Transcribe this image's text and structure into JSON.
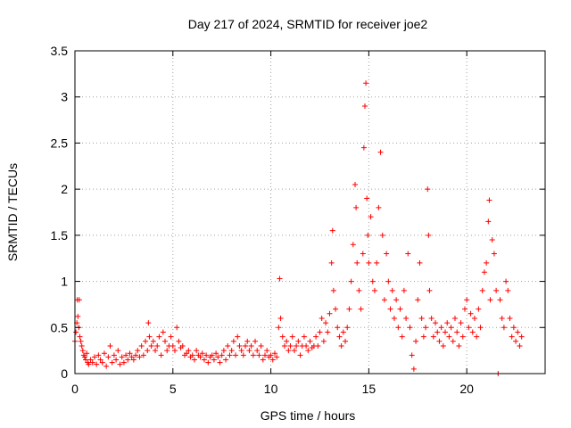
{
  "chart_data": {
    "type": "scatter",
    "title": "Day 217 of 2024, SRMTID for receiver joe2",
    "xlabel": "GPS time / hours",
    "ylabel": "SRMTID / TECUs",
    "xlim": [
      0,
      24
    ],
    "ylim": [
      0,
      3.5
    ],
    "xticks": [
      0,
      5,
      10,
      15,
      20
    ],
    "xtick_labels": [
      "0",
      "5",
      "10",
      "15",
      "20"
    ],
    "yticks": [
      0,
      0.5,
      1,
      1.5,
      2,
      2.5,
      3,
      3.5
    ],
    "ytick_labels": [
      "0",
      "0.5",
      "1",
      "1.5",
      "2",
      "2.5",
      "3",
      "3.5"
    ],
    "grid": true,
    "marker": "+",
    "color": "#ff0000",
    "series": [
      {
        "name": "SRMTID",
        "points": [
          [
            0.0,
            0.35
          ],
          [
            0.05,
            0.45
          ],
          [
            0.1,
            0.55
          ],
          [
            0.12,
            0.8
          ],
          [
            0.15,
            0.62
          ],
          [
            0.2,
            0.5
          ],
          [
            0.22,
            0.8
          ],
          [
            0.25,
            0.4
          ],
          [
            0.3,
            0.35
          ],
          [
            0.35,
            0.3
          ],
          [
            0.4,
            0.25
          ],
          [
            0.45,
            0.2
          ],
          [
            0.5,
            0.18
          ],
          [
            0.55,
            0.15
          ],
          [
            0.6,
            0.22
          ],
          [
            0.65,
            0.12
          ],
          [
            0.7,
            0.1
          ],
          [
            0.8,
            0.15
          ],
          [
            0.9,
            0.12
          ],
          [
            1.0,
            0.18
          ],
          [
            1.1,
            0.1
          ],
          [
            1.2,
            0.2
          ],
          [
            1.3,
            0.15
          ],
          [
            1.4,
            0.12
          ],
          [
            1.5,
            0.22
          ],
          [
            1.6,
            0.08
          ],
          [
            1.7,
            0.18
          ],
          [
            1.8,
            0.3
          ],
          [
            1.9,
            0.12
          ],
          [
            2.0,
            0.2
          ],
          [
            2.1,
            0.15
          ],
          [
            2.2,
            0.25
          ],
          [
            2.3,
            0.1
          ],
          [
            2.4,
            0.18
          ],
          [
            2.5,
            0.12
          ],
          [
            2.6,
            0.2
          ],
          [
            2.7,
            0.15
          ],
          [
            2.8,
            0.22
          ],
          [
            2.9,
            0.18
          ],
          [
            3.0,
            0.15
          ],
          [
            3.1,
            0.2
          ],
          [
            3.2,
            0.25
          ],
          [
            3.3,
            0.18
          ],
          [
            3.4,
            0.3
          ],
          [
            3.5,
            0.2
          ],
          [
            3.6,
            0.35
          ],
          [
            3.7,
            0.25
          ],
          [
            3.75,
            0.55
          ],
          [
            3.8,
            0.4
          ],
          [
            3.9,
            0.3
          ],
          [
            4.0,
            0.35
          ],
          [
            4.1,
            0.25
          ],
          [
            4.2,
            0.3
          ],
          [
            4.3,
            0.4
          ],
          [
            4.4,
            0.2
          ],
          [
            4.5,
            0.45
          ],
          [
            4.6,
            0.35
          ],
          [
            4.7,
            0.25
          ],
          [
            4.8,
            0.3
          ],
          [
            4.9,
            0.4
          ],
          [
            5.0,
            0.3
          ],
          [
            5.1,
            0.25
          ],
          [
            5.2,
            0.5
          ],
          [
            5.3,
            0.35
          ],
          [
            5.4,
            0.28
          ],
          [
            5.5,
            0.3
          ],
          [
            5.6,
            0.2
          ],
          [
            5.7,
            0.22
          ],
          [
            5.8,
            0.25
          ],
          [
            5.9,
            0.18
          ],
          [
            6.0,
            0.2
          ],
          [
            6.1,
            0.15
          ],
          [
            6.2,
            0.25
          ],
          [
            6.3,
            0.2
          ],
          [
            6.4,
            0.18
          ],
          [
            6.5,
            0.22
          ],
          [
            6.6,
            0.15
          ],
          [
            6.7,
            0.2
          ],
          [
            6.8,
            0.12
          ],
          [
            6.9,
            0.18
          ],
          [
            7.0,
            0.2
          ],
          [
            7.1,
            0.15
          ],
          [
            7.2,
            0.22
          ],
          [
            7.3,
            0.18
          ],
          [
            7.4,
            0.12
          ],
          [
            7.5,
            0.2
          ],
          [
            7.6,
            0.25
          ],
          [
            7.7,
            0.15
          ],
          [
            7.8,
            0.3
          ],
          [
            7.9,
            0.2
          ],
          [
            8.0,
            0.25
          ],
          [
            8.1,
            0.35
          ],
          [
            8.2,
            0.2
          ],
          [
            8.3,
            0.4
          ],
          [
            8.4,
            0.3
          ],
          [
            8.5,
            0.25
          ],
          [
            8.6,
            0.2
          ],
          [
            8.7,
            0.3
          ],
          [
            8.8,
            0.35
          ],
          [
            8.9,
            0.25
          ],
          [
            9.0,
            0.3
          ],
          [
            9.1,
            0.2
          ],
          [
            9.2,
            0.35
          ],
          [
            9.3,
            0.25
          ],
          [
            9.4,
            0.2
          ],
          [
            9.5,
            0.3
          ],
          [
            9.6,
            0.15
          ],
          [
            9.7,
            0.2
          ],
          [
            9.8,
            0.25
          ],
          [
            9.9,
            0.18
          ],
          [
            10.0,
            0.2
          ],
          [
            10.1,
            0.15
          ],
          [
            10.2,
            0.22
          ],
          [
            10.3,
            0.18
          ],
          [
            10.4,
            0.5
          ],
          [
            10.45,
            1.03
          ],
          [
            10.5,
            0.6
          ],
          [
            10.6,
            0.4
          ],
          [
            10.7,
            0.3
          ],
          [
            10.8,
            0.35
          ],
          [
            10.9,
            0.25
          ],
          [
            11.0,
            0.3
          ],
          [
            11.1,
            0.4
          ],
          [
            11.2,
            0.25
          ],
          [
            11.3,
            0.3
          ],
          [
            11.4,
            0.35
          ],
          [
            11.5,
            0.2
          ],
          [
            11.6,
            0.3
          ],
          [
            11.7,
            0.4
          ],
          [
            11.8,
            0.3
          ],
          [
            11.9,
            0.25
          ],
          [
            12.0,
            0.35
          ],
          [
            12.1,
            0.28
          ],
          [
            12.2,
            0.3
          ],
          [
            12.3,
            0.4
          ],
          [
            12.4,
            0.3
          ],
          [
            12.5,
            0.45
          ],
          [
            12.6,
            0.6
          ],
          [
            12.7,
            0.35
          ],
          [
            12.8,
            0.55
          ],
          [
            12.9,
            0.45
          ],
          [
            13.0,
            0.65
          ],
          [
            13.1,
            1.2
          ],
          [
            13.15,
            1.55
          ],
          [
            13.2,
            0.9
          ],
          [
            13.3,
            0.7
          ],
          [
            13.4,
            0.5
          ],
          [
            13.5,
            0.4
          ],
          [
            13.6,
            0.3
          ],
          [
            13.7,
            0.45
          ],
          [
            13.8,
            0.35
          ],
          [
            13.9,
            0.5
          ],
          [
            14.0,
            0.7
          ],
          [
            14.1,
            1.0
          ],
          [
            14.2,
            1.4
          ],
          [
            14.3,
            2.05
          ],
          [
            14.35,
            1.8
          ],
          [
            14.4,
            1.2
          ],
          [
            14.5,
            0.9
          ],
          [
            14.6,
            0.7
          ],
          [
            14.7,
            1.3
          ],
          [
            14.75,
            2.45
          ],
          [
            14.8,
            2.9
          ],
          [
            14.85,
            3.15
          ],
          [
            14.9,
            1.9
          ],
          [
            14.95,
            1.5
          ],
          [
            15.0,
            1.2
          ],
          [
            15.1,
            1.7
          ],
          [
            15.2,
            1.0
          ],
          [
            15.3,
            0.9
          ],
          [
            15.4,
            1.2
          ],
          [
            15.5,
            1.8
          ],
          [
            15.6,
            2.4
          ],
          [
            15.7,
            1.5
          ],
          [
            15.8,
            0.8
          ],
          [
            15.9,
            1.3
          ],
          [
            16.0,
            1.0
          ],
          [
            16.1,
            0.7
          ],
          [
            16.2,
            0.9
          ],
          [
            16.3,
            0.6
          ],
          [
            16.4,
            0.8
          ],
          [
            16.5,
            0.5
          ],
          [
            16.6,
            0.7
          ],
          [
            16.7,
            0.4
          ],
          [
            16.8,
            0.9
          ],
          [
            16.9,
            0.6
          ],
          [
            17.0,
            1.3
          ],
          [
            17.1,
            0.5
          ],
          [
            17.2,
            0.2
          ],
          [
            17.3,
            0.05
          ],
          [
            17.4,
            0.35
          ],
          [
            17.5,
            0.8
          ],
          [
            17.6,
            1.2
          ],
          [
            17.7,
            0.6
          ],
          [
            17.8,
            0.4
          ],
          [
            17.9,
            0.5
          ],
          [
            18.0,
            2.0
          ],
          [
            18.05,
            1.5
          ],
          [
            18.1,
            0.9
          ],
          [
            18.2,
            0.6
          ],
          [
            18.3,
            0.4
          ],
          [
            18.4,
            0.55
          ],
          [
            18.5,
            0.45
          ],
          [
            18.6,
            0.35
          ],
          [
            18.7,
            0.5
          ],
          [
            18.8,
            0.3
          ],
          [
            18.9,
            0.45
          ],
          [
            19.0,
            0.55
          ],
          [
            19.1,
            0.4
          ],
          [
            19.2,
            0.5
          ],
          [
            19.3,
            0.35
          ],
          [
            19.4,
            0.6
          ],
          [
            19.5,
            0.45
          ],
          [
            19.6,
            0.3
          ],
          [
            19.7,
            0.55
          ],
          [
            19.8,
            0.4
          ],
          [
            19.9,
            0.7
          ],
          [
            20.0,
            0.8
          ],
          [
            20.1,
            0.5
          ],
          [
            20.2,
            0.65
          ],
          [
            20.3,
            0.45
          ],
          [
            20.4,
            0.6
          ],
          [
            20.5,
            0.4
          ],
          [
            20.6,
            0.7
          ],
          [
            20.7,
            0.5
          ],
          [
            20.8,
            0.9
          ],
          [
            20.9,
            1.1
          ],
          [
            21.0,
            1.2
          ],
          [
            21.1,
            1.65
          ],
          [
            21.15,
            1.88
          ],
          [
            21.2,
            0.8
          ],
          [
            21.3,
            1.45
          ],
          [
            21.4,
            1.3
          ],
          [
            21.5,
            0.9
          ],
          [
            21.6,
            0.0
          ],
          [
            21.7,
            0.8
          ],
          [
            21.8,
            0.6
          ],
          [
            21.9,
            0.5
          ],
          [
            22.0,
            1.0
          ],
          [
            22.1,
            0.9
          ],
          [
            22.2,
            0.6
          ],
          [
            22.3,
            0.4
          ],
          [
            22.4,
            0.5
          ],
          [
            22.5,
            0.35
          ],
          [
            22.6,
            0.45
          ],
          [
            22.7,
            0.3
          ],
          [
            22.8,
            0.4
          ]
        ]
      }
    ]
  }
}
